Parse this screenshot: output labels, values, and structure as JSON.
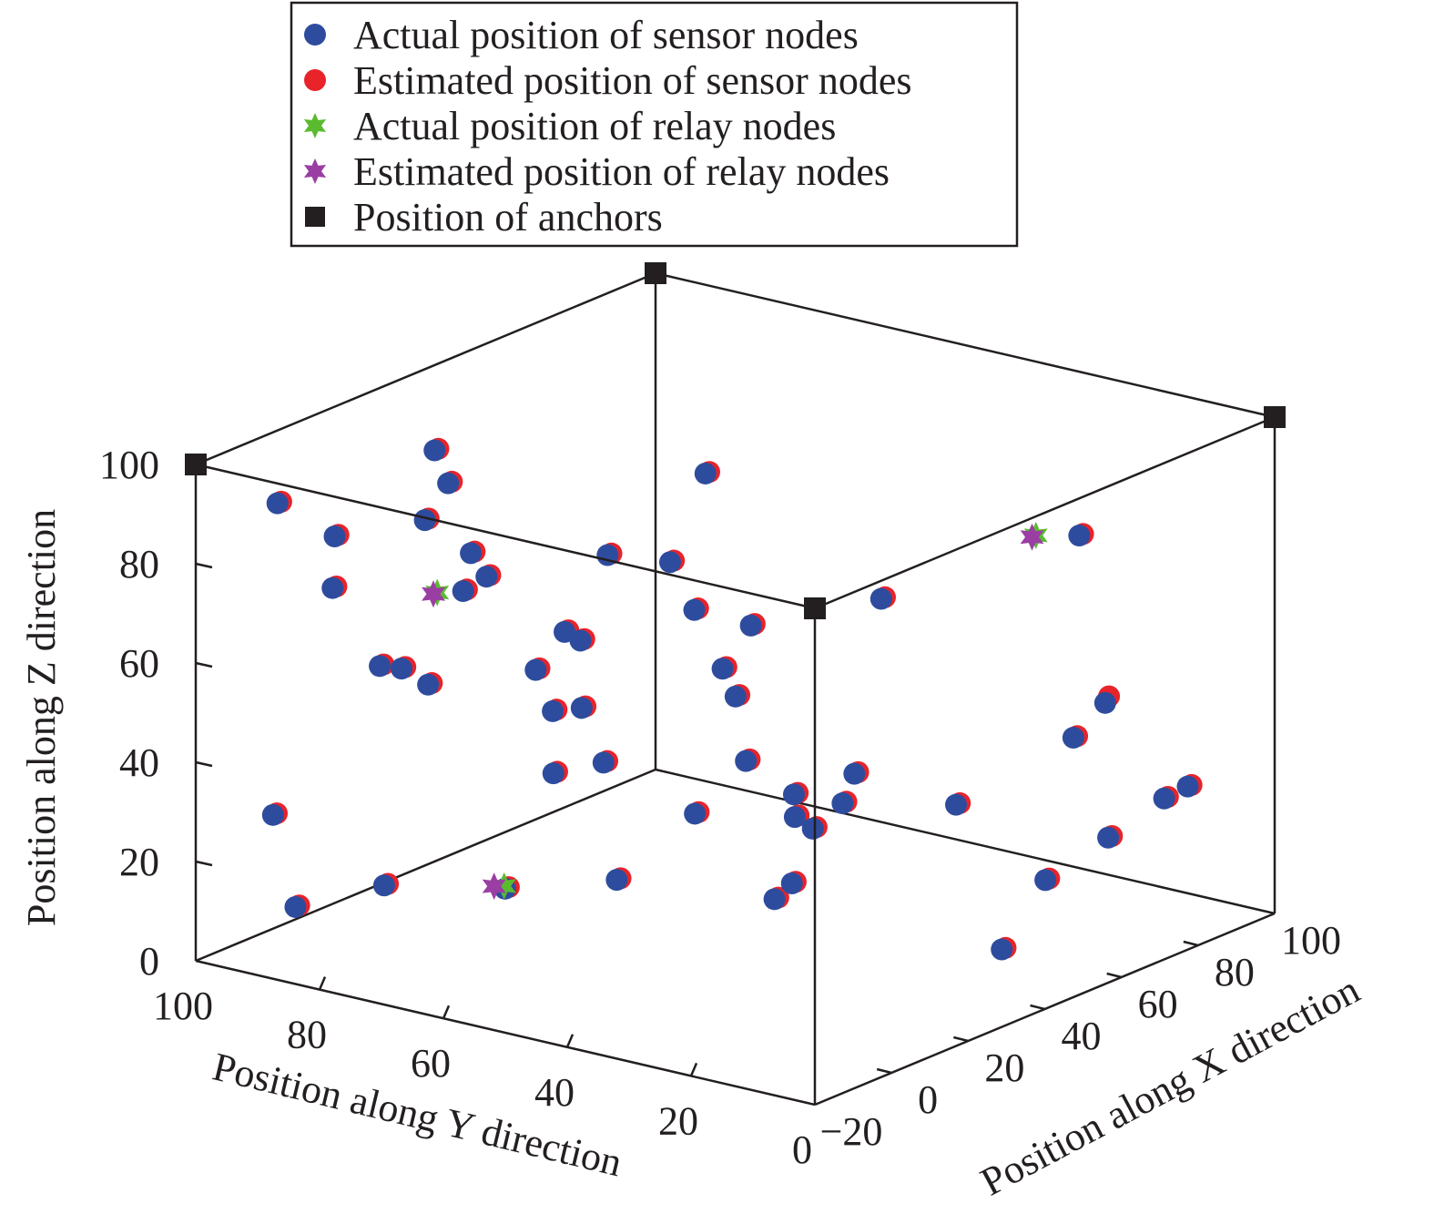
{
  "chart_data": {
    "type": "scatter",
    "title": "",
    "xlabel": "Position along X direction",
    "ylabel": "Position along Y direction",
    "zlabel": "Position along Z direction",
    "xlim": [
      -20,
      100
    ],
    "ylim": [
      0,
      100
    ],
    "zlim": [
      0,
      100
    ],
    "x_ticks": [
      "−20",
      "0",
      "20",
      "40",
      "60",
      "80",
      "100"
    ],
    "y_ticks": [
      "0",
      "20",
      "40",
      "60",
      "80",
      "100"
    ],
    "z_ticks": [
      "0",
      "20",
      "40",
      "60",
      "80",
      "100"
    ],
    "grid": false,
    "legend_position": "top",
    "colors": {
      "actual_sensor": "#2e4c9e",
      "estimated_sensor": "#e8232a",
      "actual_relay": "#5abb2f",
      "estimated_relay": "#9b3ea4",
      "anchor": "#231f20"
    },
    "legend": [
      {
        "key": "actual_sensor",
        "label": "Actual position of sensor nodes",
        "marker": "circle"
      },
      {
        "key": "estimated_sensor",
        "label": "Estimated position of sensor nodes",
        "marker": "circle"
      },
      {
        "key": "actual_relay",
        "label": "Actual position of relay nodes",
        "marker": "star"
      },
      {
        "key": "estimated_relay",
        "label": "Estimated position of relay nodes",
        "marker": "star"
      },
      {
        "key": "anchor",
        "label": "Position of anchors",
        "marker": "square"
      }
    ],
    "anchors": [
      [
        -20,
        100,
        100
      ],
      [
        -20,
        0,
        100
      ],
      [
        100,
        0,
        100
      ],
      [
        100,
        100,
        100
      ]
    ],
    "sensor_nodes": {
      "actual": [
        [
          32,
          2,
          14
        ],
        [
          59,
          2,
          55
        ],
        [
          87,
          6,
          28
        ],
        [
          76,
          3,
          30
        ],
        [
          63,
          4,
          26
        ],
        [
          62,
          9,
          45
        ],
        [
          66,
          16,
          13
        ],
        [
          70,
          13,
          82
        ],
        [
          54,
          23,
          30
        ],
        [
          26,
          24,
          39
        ],
        [
          21,
          19,
          48
        ],
        [
          28,
          19,
          81
        ],
        [
          20,
          28,
          37
        ],
        [
          15,
          22,
          38
        ],
        [
          5,
          22,
          27
        ],
        [
          -5,
          13,
          36
        ],
        [
          23,
          30,
          40
        ],
        [
          11,
          32,
          63
        ],
        [
          4,
          26,
          54
        ],
        [
          4,
          49,
          47
        ],
        [
          18,
          43,
          75
        ],
        [
          23,
          50,
          81
        ],
        [
          18,
          57,
          82
        ],
        [
          57,
          58,
          55
        ],
        [
          -10,
          63,
          82
        ],
        [
          50,
          61,
          87
        ],
        [
          -3,
          73,
          58
        ],
        [
          17,
          68,
          56
        ],
        [
          8,
          55,
          55
        ],
        [
          22,
          58,
          15
        ],
        [
          -6,
          51,
          60
        ],
        [
          19,
          62,
          63
        ],
        [
          -14,
          74,
          65
        ],
        [
          -8,
          63,
          89
        ],
        [
          3,
          81,
          57
        ],
        [
          10,
          80,
          99
        ],
        [
          20,
          84,
          88
        ],
        [
          -8,
          85,
          86
        ],
        [
          -10,
          93,
          91
        ],
        [
          -8,
          77,
          18
        ],
        [
          -15,
          87,
          13
        ],
        [
          -12,
          55,
          25
        ],
        [
          -1,
          54,
          45
        ],
        [
          -15,
          81,
          79
        ],
        [
          -16,
          90,
          31
        ],
        [
          -12,
          58,
          87
        ],
        [
          1,
          76,
          89
        ],
        [
          27,
          44,
          60
        ],
        [
          31,
          72,
          58
        ],
        [
          2,
          33,
          42
        ]
      ],
      "estimated": [
        [
          33,
          2,
          14
        ],
        [
          60,
          2,
          56
        ],
        [
          88,
          6,
          28
        ],
        [
          77,
          3,
          30
        ],
        [
          64,
          4,
          26
        ],
        [
          63,
          9,
          45
        ],
        [
          67,
          16,
          13
        ],
        [
          71,
          13,
          82
        ],
        [
          55,
          23,
          30
        ],
        [
          27,
          24,
          39
        ],
        [
          22,
          19,
          48
        ],
        [
          29,
          19,
          81
        ],
        [
          21,
          28,
          37
        ],
        [
          16,
          22,
          38
        ],
        [
          6,
          22,
          27
        ],
        [
          -4,
          13,
          36
        ],
        [
          24,
          30,
          40
        ],
        [
          12,
          32,
          63
        ],
        [
          5,
          26,
          54
        ],
        [
          5,
          49,
          47
        ],
        [
          19,
          43,
          75
        ],
        [
          24,
          50,
          81
        ],
        [
          19,
          57,
          82
        ],
        [
          58,
          58,
          55
        ],
        [
          -9,
          63,
          82
        ],
        [
          51,
          61,
          87
        ],
        [
          -2,
          73,
          58
        ],
        [
          18,
          68,
          56
        ],
        [
          9,
          55,
          55
        ],
        [
          23,
          58,
          15
        ],
        [
          -5,
          51,
          60
        ],
        [
          20,
          62,
          63
        ],
        [
          -13,
          74,
          65
        ],
        [
          -7,
          63,
          89
        ],
        [
          4,
          81,
          57
        ],
        [
          11,
          80,
          99
        ],
        [
          21,
          84,
          88
        ],
        [
          -7,
          85,
          86
        ],
        [
          -9,
          93,
          91
        ],
        [
          -7,
          77,
          18
        ],
        [
          -14,
          87,
          13
        ],
        [
          -11,
          55,
          25
        ],
        [
          0,
          54,
          45
        ],
        [
          -14,
          81,
          79
        ],
        [
          -15,
          90,
          31
        ],
        [
          -11,
          58,
          87
        ],
        [
          2,
          76,
          89
        ],
        [
          28,
          44,
          60
        ],
        [
          32,
          72,
          58
        ],
        [
          3,
          33,
          42
        ]
      ]
    },
    "relay_nodes": {
      "actual": [
        [
          -9,
          57,
          24
        ],
        [
          1,
          74,
          75
        ],
        [
          70,
          20,
          80
        ]
      ],
      "estimated": [
        [
          -10,
          58,
          24
        ],
        [
          0,
          74,
          75
        ],
        [
          69,
          20,
          80
        ]
      ]
    }
  }
}
